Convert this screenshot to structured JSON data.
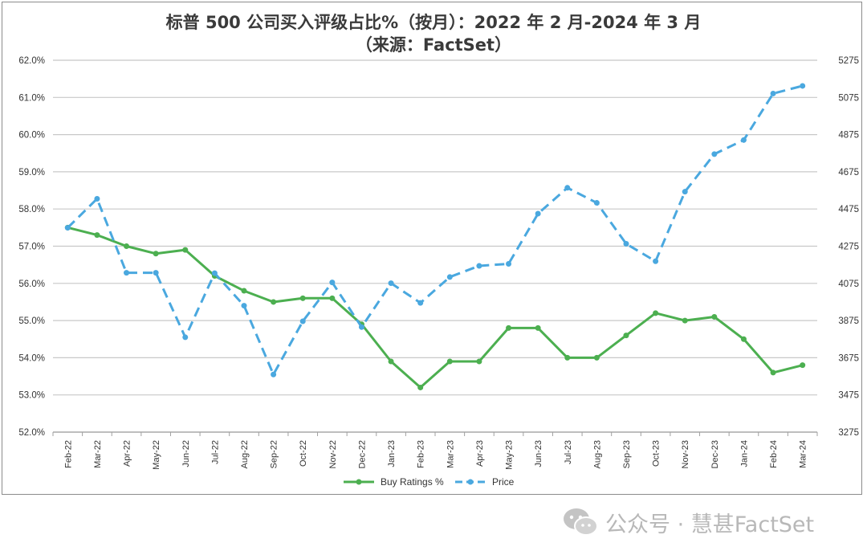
{
  "title_line1": "标普 500 公司买入评级占比%（按月）：2022 年 2 月-2024 年 3 月",
  "title_line2": "（来源：FactSet）",
  "watermark": {
    "text": "公众号 · 慧甚FactSet",
    "icon": "wechat-icon"
  },
  "colors": {
    "buy": "#4caf50",
    "price": "#4aa8df",
    "grid": "#c8c8c8",
    "axis_text": "#333333"
  },
  "chart_data": {
    "type": "line",
    "title": "标普 500 公司买入评级占比%（按月）：2022 年 2 月-2024 年 3 月",
    "subtitle": "（来源：FactSet）",
    "categories": [
      "Feb-22",
      "Mar-22",
      "Apr-22",
      "May-22",
      "Jun-22",
      "Jul-22",
      "Aug-22",
      "Sep-22",
      "Oct-22",
      "Nov-22",
      "Dec-22",
      "Jan-23",
      "Feb-23",
      "Mar-23",
      "Apr-23",
      "May-23",
      "Jun-23",
      "Jul-23",
      "Aug-23",
      "Sep-23",
      "Oct-23",
      "Nov-23",
      "Dec-23",
      "Jan-24",
      "Feb-24",
      "Mar-24"
    ],
    "left_axis": {
      "ylim": [
        52.0,
        62.0
      ],
      "ticks": [
        "52.0%",
        "53.0%",
        "54.0%",
        "55.0%",
        "56.0%",
        "57.0%",
        "58.0%",
        "59.0%",
        "60.0%",
        "61.0%",
        "62.0%"
      ]
    },
    "right_axis": {
      "ylim": [
        3275,
        5275
      ],
      "ticks": [
        "3275",
        "3475",
        "3675",
        "3875",
        "4075",
        "4275",
        "4475",
        "4675",
        "4875",
        "5075",
        "5275"
      ]
    },
    "series": [
      {
        "name": "Buy Ratings %",
        "axis": "left",
        "style": "solid",
        "values": [
          57.5,
          57.3,
          57.0,
          56.8,
          56.9,
          56.2,
          55.8,
          55.5,
          55.6,
          55.6,
          54.9,
          53.9,
          53.2,
          53.9,
          53.9,
          54.8,
          54.8,
          54.0,
          54.0,
          54.6,
          55.2,
          55.0,
          55.1,
          54.5,
          53.6,
          53.8
        ]
      },
      {
        "name": "Price",
        "axis": "right",
        "style": "dashed",
        "values": [
          4374,
          4530,
          4132,
          4132,
          3785,
          4130,
          3955,
          3585,
          3871,
          4080,
          3840,
          4076,
          3970,
          4109,
          4169,
          4180,
          4450,
          4589,
          4508,
          4288,
          4194,
          4568,
          4770,
          4846,
          5096,
          5137
        ]
      }
    ],
    "grid": true,
    "legend": "bottom-center"
  }
}
